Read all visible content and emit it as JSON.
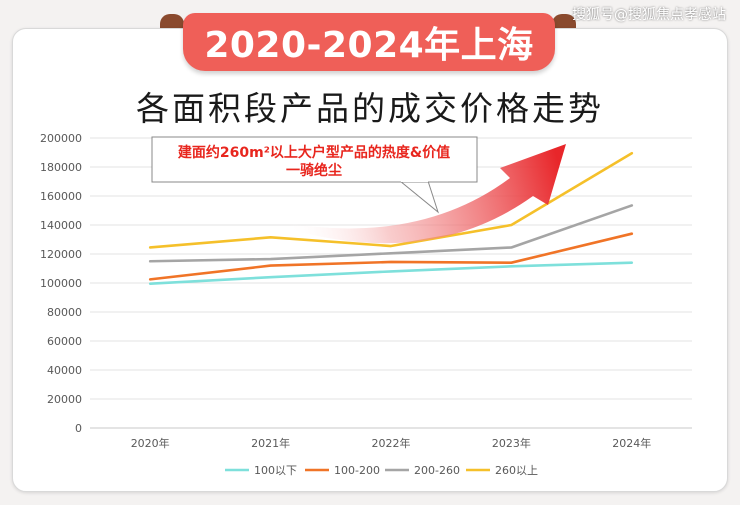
{
  "watermark": "搜狐号@搜狐焦点孝感站",
  "banner": "2020-2024年上海",
  "title": "各面积段产品的成交价格走势",
  "callout": {
    "line1": "建面约260m²以上大户型产品的热度&价值",
    "line2": "一骑绝尘"
  },
  "colors": {
    "banner": "#ef5f58",
    "callout_text": "#e8261e",
    "arrow": "#e8262a"
  },
  "chart_data": {
    "type": "line",
    "categories": [
      "2020年",
      "2021年",
      "2022年",
      "2023年",
      "2024年"
    ],
    "ylim": [
      0,
      200000
    ],
    "yticks": [
      0,
      20000,
      40000,
      60000,
      80000,
      100000,
      120000,
      140000,
      160000,
      180000,
      200000
    ],
    "grid": true,
    "legend_position": "bottom",
    "series": [
      {
        "name": "100以下",
        "color": "#7ee0db",
        "values": [
          99500,
          104000,
          108000,
          111500,
          114000
        ]
      },
      {
        "name": "100-200",
        "color": "#f07427",
        "values": [
          102500,
          112000,
          114500,
          114000,
          134000
        ]
      },
      {
        "name": "200-260",
        "color": "#a5a5a5",
        "values": [
          115000,
          116500,
          120500,
          124500,
          153500
        ]
      },
      {
        "name": "260以上",
        "color": "#f5c02a",
        "values": [
          124500,
          131500,
          125500,
          140000,
          189500
        ]
      }
    ]
  }
}
